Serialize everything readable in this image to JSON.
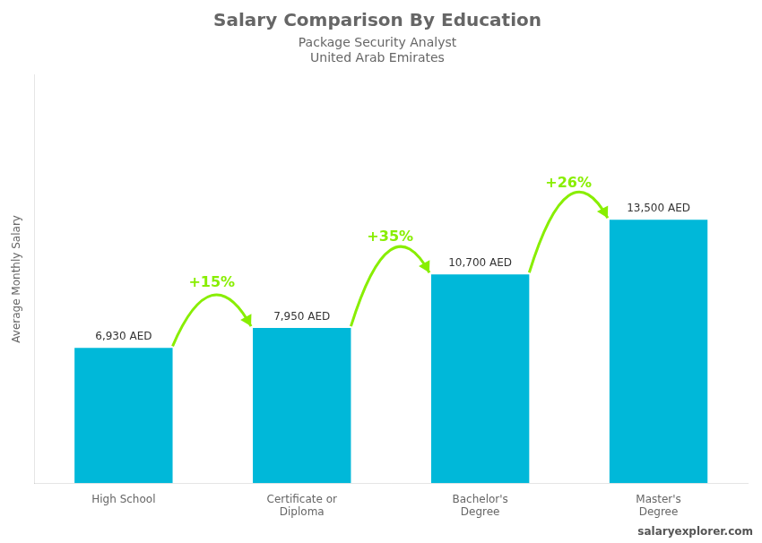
{
  "chart_data": {
    "type": "bar",
    "title": "Salary Comparison By Education",
    "subtitle": [
      "Package Security Analyst",
      "United Arab Emirates"
    ],
    "y_label": "Average Monthly Salary",
    "categories": [
      "High School",
      "Certificate or\nDiploma",
      "Bachelor's\nDegree",
      "Master's\nDegree"
    ],
    "values": [
      6930,
      7950,
      10700,
      13500
    ],
    "value_labels": [
      "6,930 AED",
      "7,950 AED",
      "10,700 AED",
      "13,500 AED"
    ],
    "data_labels": true,
    "color": "#00b8d9",
    "ylim": [
      0,
      20925
    ],
    "grid": false,
    "tick_labels": "x",
    "annotations": [
      {
        "text": "+15%",
        "from": "High School",
        "to": "Certificate or\nDiploma",
        "color": "#88ee00"
      },
      {
        "text": "+35%",
        "from": "Certificate or\nDiploma",
        "to": "Bachelor's\nDegree",
        "color": "#88ee00"
      },
      {
        "text": "+26%",
        "from": "Bachelor's\nDegree",
        "to": "Master's\nDegree",
        "color": "#88ee00"
      },
      {
        "text": "salaryexplorer.com"
      }
    ]
  }
}
